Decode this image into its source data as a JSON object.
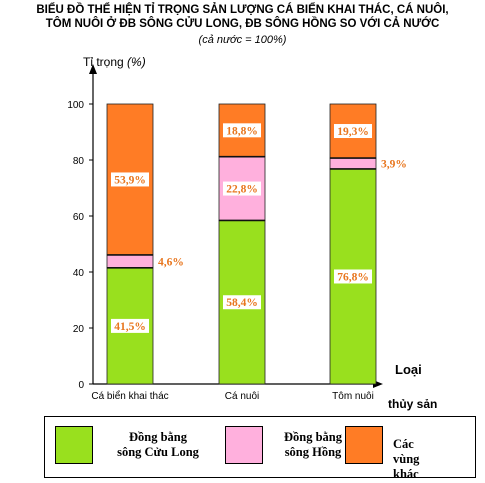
{
  "title_lines": [
    "BIỂU ĐỒ THỂ HIỆN TỈ TRỌNG SẢN LƯỢNG CÁ BIỂN KHAI THÁC, CÁ NUÔI,",
    "TÔM NUÔI Ở ĐB SÔNG CỬU LONG, ĐB SÔNG HỒNG SO VỚI CẢ NƯỚC",
    "(cả nước = 100%)"
  ],
  "colors": {
    "cuu_long": "#99e01e",
    "hong": "#ffb0dd",
    "khac": "#ff7c25",
    "label_text": "#e8761e"
  },
  "legend": [
    {
      "line1": "Đồng bằng",
      "line2": "sông Cửu Long"
    },
    {
      "line1": "Đồng bằng",
      "line2": "sông Hồng"
    },
    {
      "line1": "Các vùng khác",
      "line2": ""
    }
  ],
  "chart_data": {
    "type": "bar",
    "stacked": true,
    "title": "BIỂU ĐỒ THỂ HIỆN TỈ TRỌNG SẢN LƯỢNG CÁ BIỂN KHAI THÁC, CÁ NUÔI, TÔM NUÔI Ở ĐB SÔNG CỬU LONG, ĐB SÔNG HỒNG SO VỚI CẢ NƯỚC",
    "subtitle": "(cả nước = 100%)",
    "ylabel": "Tỉ trọng (%)",
    "xlabel_line1": "Loại",
    "xlabel_line2": "thủy sản",
    "categories": [
      "Cá biển khai thác",
      "Cá nuôi",
      "Tôm nuôi"
    ],
    "ylim": [
      0,
      100
    ],
    "yticks": [
      0,
      20,
      40,
      60,
      80,
      100
    ],
    "grid": false,
    "legend_position": "bottom",
    "series": [
      {
        "name": "Đồng bằng sông Cửu Long",
        "values": [
          41.5,
          58.4,
          76.8
        ],
        "labels": [
          "41,5%",
          "58,4%",
          "76,8%"
        ]
      },
      {
        "name": "Đồng bằng sông Hồng",
        "values": [
          4.6,
          22.8,
          3.9
        ],
        "labels": [
          "4,6%",
          "22,8%",
          "3,9%"
        ]
      },
      {
        "name": "Các vùng khác",
        "values": [
          53.9,
          18.8,
          19.3
        ],
        "labels": [
          "53,9%",
          "18,8%",
          "19,3%"
        ]
      }
    ]
  }
}
